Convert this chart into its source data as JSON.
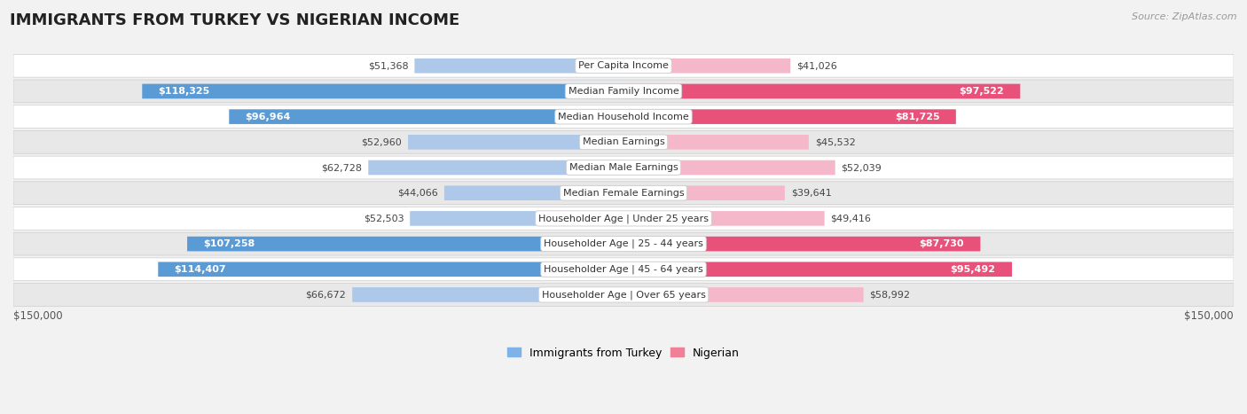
{
  "title": "IMMIGRANTS FROM TURKEY VS NIGERIAN INCOME",
  "source": "Source: ZipAtlas.com",
  "categories": [
    "Per Capita Income",
    "Median Family Income",
    "Median Household Income",
    "Median Earnings",
    "Median Male Earnings",
    "Median Female Earnings",
    "Householder Age | Under 25 years",
    "Householder Age | 25 - 44 years",
    "Householder Age | 45 - 64 years",
    "Householder Age | Over 65 years"
  ],
  "turkey_values": [
    51368,
    118325,
    96964,
    52960,
    62728,
    44066,
    52503,
    107258,
    114407,
    66672
  ],
  "nigerian_values": [
    41026,
    97522,
    81725,
    45532,
    52039,
    39641,
    49416,
    87730,
    95492,
    58992
  ],
  "turkey_labels": [
    "$51,368",
    "$118,325",
    "$96,964",
    "$52,960",
    "$62,728",
    "$44,066",
    "$52,503",
    "$107,258",
    "$114,407",
    "$66,672"
  ],
  "nigerian_labels": [
    "$41,026",
    "$97,522",
    "$81,725",
    "$45,532",
    "$52,039",
    "$39,641",
    "$49,416",
    "$87,730",
    "$95,492",
    "$58,992"
  ],
  "max_value": 150000,
  "turkey_color_light": "#adc8e8",
  "turkey_color_dark": "#5b9bd5",
  "nigerian_color_light": "#f5b8cb",
  "nigerian_color_dark": "#e8527a",
  "turkey_legend_color": "#7fb3e8",
  "nigerian_legend_color": "#f08098",
  "bg_color": "#f2f2f2",
  "row_bg_white": "#ffffff",
  "row_bg_gray": "#e8e8e8",
  "label_inside_threshold": 75000,
  "bar_height": 0.58,
  "axis_label_left": "$150,000",
  "axis_label_right": "$150,000",
  "title_fontsize": 13,
  "source_fontsize": 8,
  "label_fontsize": 8,
  "cat_fontsize": 8
}
